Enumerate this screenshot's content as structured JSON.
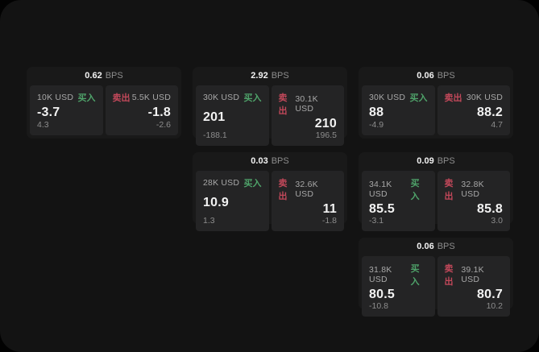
{
  "colors": {
    "window_bg": "#131313",
    "card_bg": "#191919",
    "panel_bg": "#242425",
    "text_primary": "#f2f2f2",
    "text_muted": "#8d8d8d",
    "text_size": "#a8a8a8",
    "buy_green": "#4fa36a",
    "sell_red": "#c2485a"
  },
  "labels": {
    "bps_unit": "BPS",
    "buy": "买入",
    "sell": "卖出"
  },
  "cards": [
    {
      "row": 1,
      "col": 1,
      "bps": "0.62",
      "buy": {
        "size": "10K USD",
        "price": "-3.7",
        "delta": "4.3"
      },
      "sell": {
        "size": "5.5K USD",
        "price": "-1.8",
        "delta": "-2.6"
      }
    },
    {
      "row": 1,
      "col": 2,
      "bps": "2.92",
      "buy": {
        "size": "30K USD",
        "price": "201",
        "delta": "-188.1"
      },
      "sell": {
        "size": "30.1K USD",
        "price": "210",
        "delta": "196.5"
      }
    },
    {
      "row": 1,
      "col": 3,
      "bps": "0.06",
      "buy": {
        "size": "30K USD",
        "price": "88",
        "delta": "-4.9"
      },
      "sell": {
        "size": "30K USD",
        "price": "88.2",
        "delta": "4.7"
      }
    },
    {
      "row": 2,
      "col": 2,
      "bps": "0.03",
      "buy": {
        "size": "28K USD",
        "price": "10.9",
        "delta": "1.3"
      },
      "sell": {
        "size": "32.6K USD",
        "price": "11",
        "delta": "-1.8"
      }
    },
    {
      "row": 2,
      "col": 3,
      "bps": "0.09",
      "buy": {
        "size": "34.1K USD",
        "price": "85.5",
        "delta": "-3.1"
      },
      "sell": {
        "size": "32.8K USD",
        "price": "85.8",
        "delta": "3.0"
      }
    },
    {
      "row": 3,
      "col": 3,
      "bps": "0.06",
      "buy": {
        "size": "31.8K USD",
        "price": "80.5",
        "delta": "-10.8"
      },
      "sell": {
        "size": "39.1K USD",
        "price": "80.7",
        "delta": "10.2"
      }
    }
  ]
}
